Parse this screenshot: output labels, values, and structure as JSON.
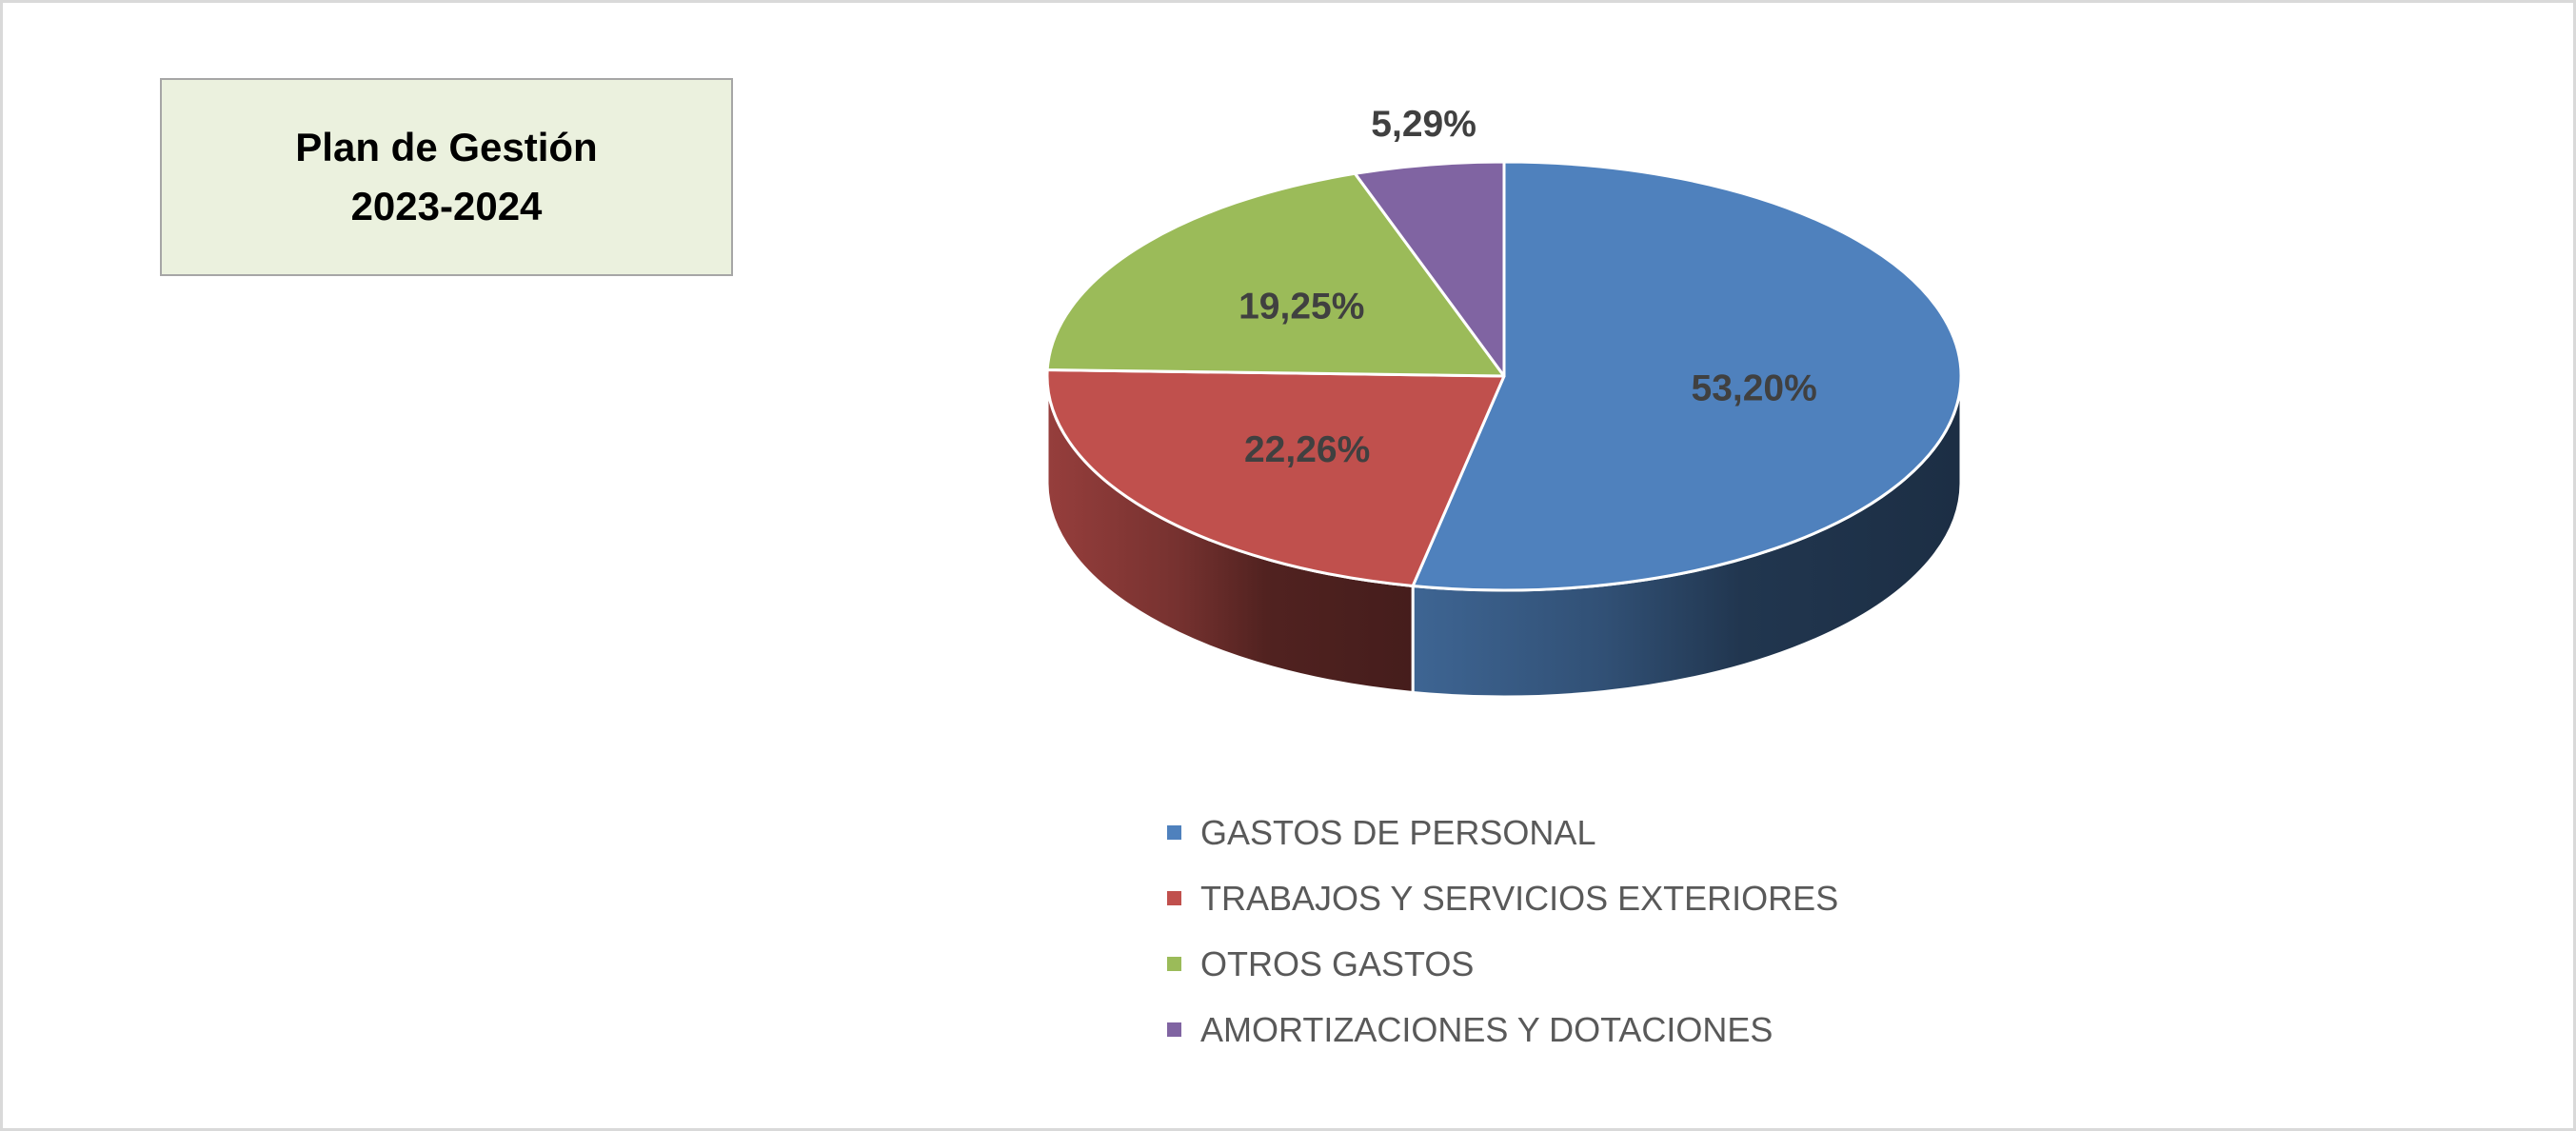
{
  "title": {
    "line1": "Plan de Gestión",
    "line2": "2023-2024"
  },
  "chart_data": {
    "type": "pie",
    "style": "3d",
    "categories": [
      "GASTOS DE PERSONAL",
      "TRABAJOS Y SERVICIOS EXTERIORES",
      "OTROS GASTOS",
      "AMORTIZACIONES Y DOTACIONES"
    ],
    "values": [
      53.2,
      22.26,
      19.25,
      5.29
    ],
    "labels": [
      "53,20%",
      "22,26%",
      "19,25%",
      "5,29%"
    ],
    "colors": [
      "#4f81bd",
      "#c0504d",
      "#9bbb59",
      "#8064a2"
    ],
    "legend_position": "bottom",
    "title": "Plan de Gestión 2023-2024"
  }
}
